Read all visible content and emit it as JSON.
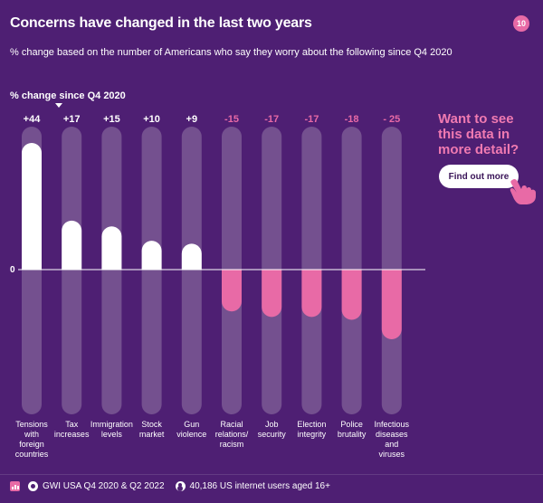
{
  "header": {
    "title": "Concerns have changed in the last two years",
    "subtitle": "% change based on the number of Americans who say they worry about the following since Q4 2020",
    "page_number": "10"
  },
  "cta": {
    "text": "Want to see this data in more detail?",
    "button_label": "Find out more"
  },
  "footer": {
    "source": "GWI USA Q4 2020 & Q2 2022",
    "sample": "40,186 US internet users aged 16+"
  },
  "colors": {
    "background": "#4e1f73",
    "positive": "#ffffff",
    "negative": "#e86aa6",
    "track": "#74508f",
    "accent": "#f07ab1"
  },
  "chart_data": {
    "type": "bar",
    "ylabel": "% change since Q4 2020",
    "zero_label": "0",
    "ylim": [
      -44,
      44
    ],
    "categories": [
      "Tensions with foreign countries",
      "Tax increases",
      "Immigration levels",
      "Stock market",
      "Gun violence",
      "Racial relations/ racism",
      "Job security",
      "Election integrity",
      "Police brutality",
      "Infectious diseases and viruses"
    ],
    "category_lines": [
      [
        "Tensions",
        "with",
        "foreign",
        "countries"
      ],
      [
        "Tax",
        "increases"
      ],
      [
        "Immigration",
        "levels"
      ],
      [
        "Stock",
        "market"
      ],
      [
        "Gun",
        "violence"
      ],
      [
        "Racial",
        "relations/",
        "racism"
      ],
      [
        "Job",
        "security"
      ],
      [
        "Election",
        "integrity"
      ],
      [
        "Police",
        "brutality"
      ],
      [
        "Infectious",
        "diseases",
        "and",
        "viruses"
      ]
    ],
    "values": [
      44,
      17,
      15,
      10,
      9,
      -15,
      -17,
      -17,
      -18,
      -25
    ],
    "value_labels": [
      "+44",
      "+17",
      "+15",
      "+10",
      "+9",
      "-15",
      "-17",
      "-17",
      "-18",
      "- 25"
    ]
  }
}
